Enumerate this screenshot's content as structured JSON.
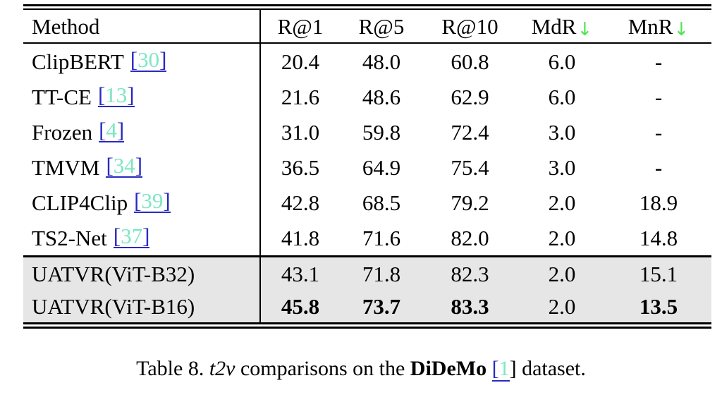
{
  "colors": {
    "citation_number": "#7ce7c2",
    "citation_bracket": "#2a2ac2",
    "link_underline": "#2a2ac2",
    "arrow_down": "#53e253",
    "highlight_row_bg": "#e6e6e6",
    "rule": "#000000"
  },
  "table": {
    "down_arrow_glyph": "↓",
    "columns": [
      {
        "label": "Method",
        "arrow": false
      },
      {
        "label": "R@1",
        "arrow": false
      },
      {
        "label": "R@5",
        "arrow": false
      },
      {
        "label": "R@10",
        "arrow": false
      },
      {
        "label": "MdR",
        "arrow": true
      },
      {
        "label": "MnR",
        "arrow": true
      }
    ],
    "rows": [
      {
        "method": "ClipBERT",
        "citation": "30",
        "values": [
          "20.4",
          "48.0",
          "60.8",
          "6.0",
          "-"
        ],
        "bold": [],
        "highlight": false
      },
      {
        "method": "TT-CE",
        "citation": "13",
        "values": [
          "21.6",
          "48.6",
          "62.9",
          "6.0",
          "-"
        ],
        "bold": [],
        "highlight": false
      },
      {
        "method": "Frozen",
        "citation": "4",
        "values": [
          "31.0",
          "59.8",
          "72.4",
          "3.0",
          "-"
        ],
        "bold": [],
        "highlight": false
      },
      {
        "method": "TMVM",
        "citation": "34",
        "values": [
          "36.5",
          "64.9",
          "75.4",
          "3.0",
          "-"
        ],
        "bold": [],
        "highlight": false
      },
      {
        "method": "CLIP4Clip",
        "citation": "39",
        "values": [
          "42.8",
          "68.5",
          "79.2",
          "2.0",
          "18.9"
        ],
        "bold": [],
        "highlight": false
      },
      {
        "method": "TS2-Net",
        "citation": "37",
        "values": [
          "41.8",
          "71.6",
          "82.0",
          "2.0",
          "14.8"
        ],
        "bold": [],
        "highlight": false
      },
      {
        "method": "UATVR(ViT-B32)",
        "citation": null,
        "values": [
          "43.1",
          "71.8",
          "82.3",
          "2.0",
          "15.1"
        ],
        "bold": [],
        "highlight": true
      },
      {
        "method": "UATVR(ViT-B16)",
        "citation": null,
        "values": [
          "45.8",
          "73.7",
          "83.3",
          "2.0",
          "13.5"
        ],
        "bold": [
          0,
          1,
          2,
          4
        ],
        "highlight": true
      }
    ]
  },
  "caption": {
    "segments": [
      {
        "text": "Table 8. ",
        "style": "normal"
      },
      {
        "text": "t2v",
        "style": "italic"
      },
      {
        "text": " comparisons on the ",
        "style": "normal"
      },
      {
        "text": "DiDeMo",
        "style": "bold"
      },
      {
        "text": " ",
        "style": "normal"
      },
      {
        "text": "[",
        "style": "cite_open"
      },
      {
        "text": "1",
        "style": "cite_num"
      },
      {
        "text": "]",
        "style": "cite_close"
      },
      {
        "text": " dataset.",
        "style": "normal"
      }
    ]
  }
}
